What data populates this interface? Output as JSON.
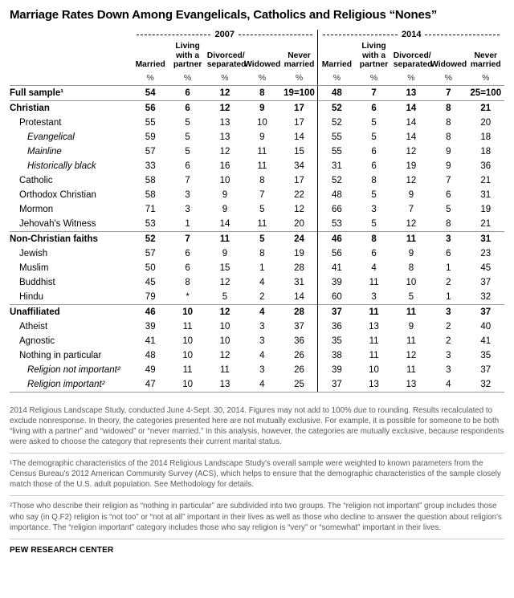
{
  "title": "Marriage Rates Down Among Evangelicals, Catholics and Religious “Nones”",
  "chart_data": {
    "type": "table",
    "title": "Marriage Rates Down Among Evangelicals, Catholics and Religious “Nones”",
    "year_groups": [
      "2007",
      "2014"
    ],
    "columns": [
      "Married",
      "Living with a partner",
      "Divorced/ separated",
      "Widowed",
      "Never married"
    ],
    "percent_symbol": "%",
    "rows": [
      {
        "label": "Full sample¹",
        "bold": true,
        "italic": false,
        "indent": 0,
        "rule_top": false,
        "y2007": [
          "54",
          "6",
          "12",
          "8",
          "19=100"
        ],
        "y2014": [
          "48",
          "7",
          "13",
          "7",
          "25=100"
        ]
      },
      {
        "label": "Christian",
        "bold": true,
        "italic": false,
        "indent": 0,
        "rule_top": true,
        "y2007": [
          "56",
          "6",
          "12",
          "9",
          "17"
        ],
        "y2014": [
          "52",
          "6",
          "14",
          "8",
          "21"
        ]
      },
      {
        "label": "Protestant",
        "bold": false,
        "italic": false,
        "indent": 1,
        "rule_top": false,
        "y2007": [
          "55",
          "5",
          "13",
          "10",
          "17"
        ],
        "y2014": [
          "52",
          "5",
          "14",
          "8",
          "20"
        ]
      },
      {
        "label": "Evangelical",
        "bold": false,
        "italic": true,
        "indent": 2,
        "rule_top": false,
        "y2007": [
          "59",
          "5",
          "13",
          "9",
          "14"
        ],
        "y2014": [
          "55",
          "5",
          "14",
          "8",
          "18"
        ]
      },
      {
        "label": "Mainline",
        "bold": false,
        "italic": true,
        "indent": 2,
        "rule_top": false,
        "y2007": [
          "57",
          "5",
          "12",
          "11",
          "15"
        ],
        "y2014": [
          "55",
          "6",
          "12",
          "9",
          "18"
        ]
      },
      {
        "label": "Historically black",
        "bold": false,
        "italic": true,
        "indent": 2,
        "rule_top": false,
        "y2007": [
          "33",
          "6",
          "16",
          "11",
          "34"
        ],
        "y2014": [
          "31",
          "6",
          "19",
          "9",
          "36"
        ]
      },
      {
        "label": "Catholic",
        "bold": false,
        "italic": false,
        "indent": 1,
        "rule_top": false,
        "y2007": [
          "58",
          "7",
          "10",
          "8",
          "17"
        ],
        "y2014": [
          "52",
          "8",
          "12",
          "7",
          "21"
        ]
      },
      {
        "label": "Orthodox Christian",
        "bold": false,
        "italic": false,
        "indent": 1,
        "rule_top": false,
        "y2007": [
          "58",
          "3",
          "9",
          "7",
          "22"
        ],
        "y2014": [
          "48",
          "5",
          "9",
          "6",
          "31"
        ]
      },
      {
        "label": "Mormon",
        "bold": false,
        "italic": false,
        "indent": 1,
        "rule_top": false,
        "y2007": [
          "71",
          "3",
          "9",
          "5",
          "12"
        ],
        "y2014": [
          "66",
          "3",
          "7",
          "5",
          "19"
        ]
      },
      {
        "label": "Jehovah's Witness",
        "bold": false,
        "italic": false,
        "indent": 1,
        "rule_top": false,
        "y2007": [
          "53",
          "1",
          "14",
          "11",
          "20"
        ],
        "y2014": [
          "53",
          "5",
          "12",
          "8",
          "21"
        ]
      },
      {
        "label": "Non-Christian faiths",
        "bold": true,
        "italic": false,
        "indent": 0,
        "rule_top": true,
        "y2007": [
          "52",
          "7",
          "11",
          "5",
          "24"
        ],
        "y2014": [
          "46",
          "8",
          "11",
          "3",
          "31"
        ]
      },
      {
        "label": "Jewish",
        "bold": false,
        "italic": false,
        "indent": 1,
        "rule_top": false,
        "y2007": [
          "57",
          "6",
          "9",
          "8",
          "19"
        ],
        "y2014": [
          "56",
          "6",
          "9",
          "6",
          "23"
        ]
      },
      {
        "label": "Muslim",
        "bold": false,
        "italic": false,
        "indent": 1,
        "rule_top": false,
        "y2007": [
          "50",
          "6",
          "15",
          "1",
          "28"
        ],
        "y2014": [
          "41",
          "4",
          "8",
          "1",
          "45"
        ]
      },
      {
        "label": "Buddhist",
        "bold": false,
        "italic": false,
        "indent": 1,
        "rule_top": false,
        "y2007": [
          "45",
          "8",
          "12",
          "4",
          "31"
        ],
        "y2014": [
          "39",
          "11",
          "10",
          "2",
          "37"
        ]
      },
      {
        "label": "Hindu",
        "bold": false,
        "italic": false,
        "indent": 1,
        "rule_top": false,
        "y2007": [
          "79",
          "*",
          "5",
          "2",
          "14"
        ],
        "y2014": [
          "60",
          "3",
          "5",
          "1",
          "32"
        ]
      },
      {
        "label": "Unaffiliated",
        "bold": true,
        "italic": false,
        "indent": 0,
        "rule_top": true,
        "y2007": [
          "46",
          "10",
          "12",
          "4",
          "28"
        ],
        "y2014": [
          "37",
          "11",
          "11",
          "3",
          "37"
        ]
      },
      {
        "label": "Atheist",
        "bold": false,
        "italic": false,
        "indent": 1,
        "rule_top": false,
        "y2007": [
          "39",
          "11",
          "10",
          "3",
          "37"
        ],
        "y2014": [
          "36",
          "13",
          "9",
          "2",
          "40"
        ]
      },
      {
        "label": "Agnostic",
        "bold": false,
        "italic": false,
        "indent": 1,
        "rule_top": false,
        "y2007": [
          "41",
          "10",
          "10",
          "3",
          "36"
        ],
        "y2014": [
          "35",
          "11",
          "11",
          "2",
          "41"
        ]
      },
      {
        "label": "Nothing in particular",
        "bold": false,
        "italic": false,
        "indent": 1,
        "rule_top": false,
        "y2007": [
          "48",
          "10",
          "12",
          "4",
          "26"
        ],
        "y2014": [
          "38",
          "11",
          "12",
          "3",
          "35"
        ]
      },
      {
        "label": "Religion not important²",
        "bold": false,
        "italic": true,
        "indent": 2,
        "rule_top": false,
        "y2007": [
          "49",
          "11",
          "11",
          "3",
          "26"
        ],
        "y2014": [
          "39",
          "10",
          "11",
          "3",
          "37"
        ]
      },
      {
        "label": "Religion important²",
        "bold": false,
        "italic": true,
        "indent": 2,
        "rule_top": false,
        "y2007": [
          "47",
          "10",
          "13",
          "4",
          "25"
        ],
        "y2014": [
          "37",
          "13",
          "13",
          "4",
          "32"
        ]
      }
    ]
  },
  "footnotes": [
    "2014 Religious Landscape Study, conducted June 4-Sept. 30, 2014. Figures may not add to 100% due to rounding. Results recalculated to exclude nonresponse. In theory, the categories presented here are not mutually exclusive. For example, it is possible for someone to be both “living with a partner” and “widowed” or “never married.” In this analysis, however, the categories are mutually exclusive, because respondents were asked to choose the category that represents their current marital status.",
    "¹The demographic characteristics of the 2014 Religious Landscape Study's overall sample were weighted to known parameters from the Census Bureau's 2012 American Community Survey (ACS), which helps to ensure that the demographic characteristics of the sample closely match those of the U.S. adult population. See Methodology for details.",
    "²Those who describe their religion as “nothing in particular” are subdivided into two groups. The “religion not important” group includes those who say (in Q.F2) religion is “not too” or “not at all” important in their lives as well as those who decline to answer the question about religion's importance. The “religion important” category includes those who say religion is “very” or “somewhat” important in their lives."
  ],
  "source": "PEW RESEARCH CENTER"
}
